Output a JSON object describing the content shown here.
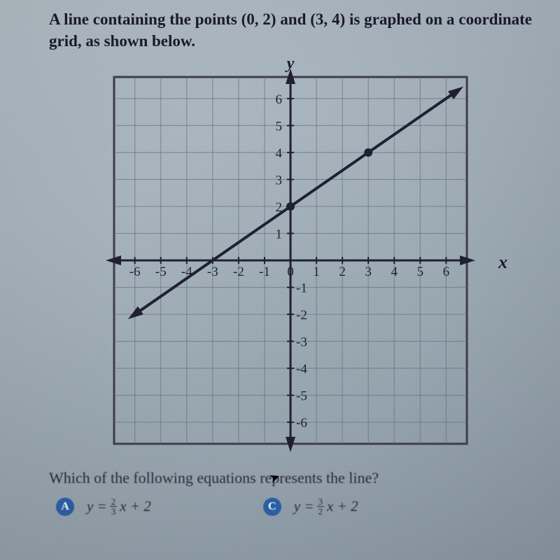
{
  "question": {
    "text_line1": "A line containing the points (0, 2) and (3, 4) is graphed on a",
    "text_line2": "coordinate grid, as shown below.",
    "follow_up": "Which of the following equations represents the line?"
  },
  "graph": {
    "type": "line",
    "y_axis_label": "y",
    "x_axis_label": "x",
    "xlim": [
      -6.8,
      6.8
    ],
    "ylim": [
      -6.8,
      6.8
    ],
    "xtick_labels": [
      "-6",
      "-5",
      "-4",
      "-3",
      "-2",
      "-1",
      "0",
      "1",
      "2",
      "3",
      "4",
      "5",
      "6"
    ],
    "ytick_labels_pos": [
      "1",
      "2",
      "3",
      "4",
      "5",
      "6"
    ],
    "ytick_labels_neg": [
      "-1",
      "-2",
      "-3",
      "-4",
      "-5",
      "-6"
    ],
    "grid_color": "#5a6a78",
    "grid_width": 1.2,
    "border_color": "#3a3a4a",
    "border_width": 3,
    "axis_color": "#1a1a2e",
    "axis_width": 3,
    "background_color": "transparent",
    "line": {
      "p1": [
        -6,
        -2
      ],
      "p2": [
        6.4,
        6.27
      ],
      "color": "#1a1a2e",
      "width": 4
    },
    "points": [
      {
        "x": 0,
        "y": 2,
        "r": 6,
        "color": "#1a1a2e"
      },
      {
        "x": 3,
        "y": 4,
        "r": 6,
        "color": "#1a1a2e"
      }
    ],
    "tick_fontsize": 19,
    "tick_color": "#1a1a2e"
  },
  "answers": {
    "A": {
      "badge": "A",
      "prefix": "y =",
      "frac_n": "2",
      "frac_d": "3",
      "suffix": "x + 2"
    },
    "C": {
      "badge": "C",
      "prefix": "y =",
      "frac_n": "3",
      "frac_d": "2",
      "suffix": "x + 2"
    }
  },
  "colors": {
    "text": "#1a1a2e",
    "badge_bg": "#2b5fa8",
    "badge_fg": "#ffffff"
  }
}
